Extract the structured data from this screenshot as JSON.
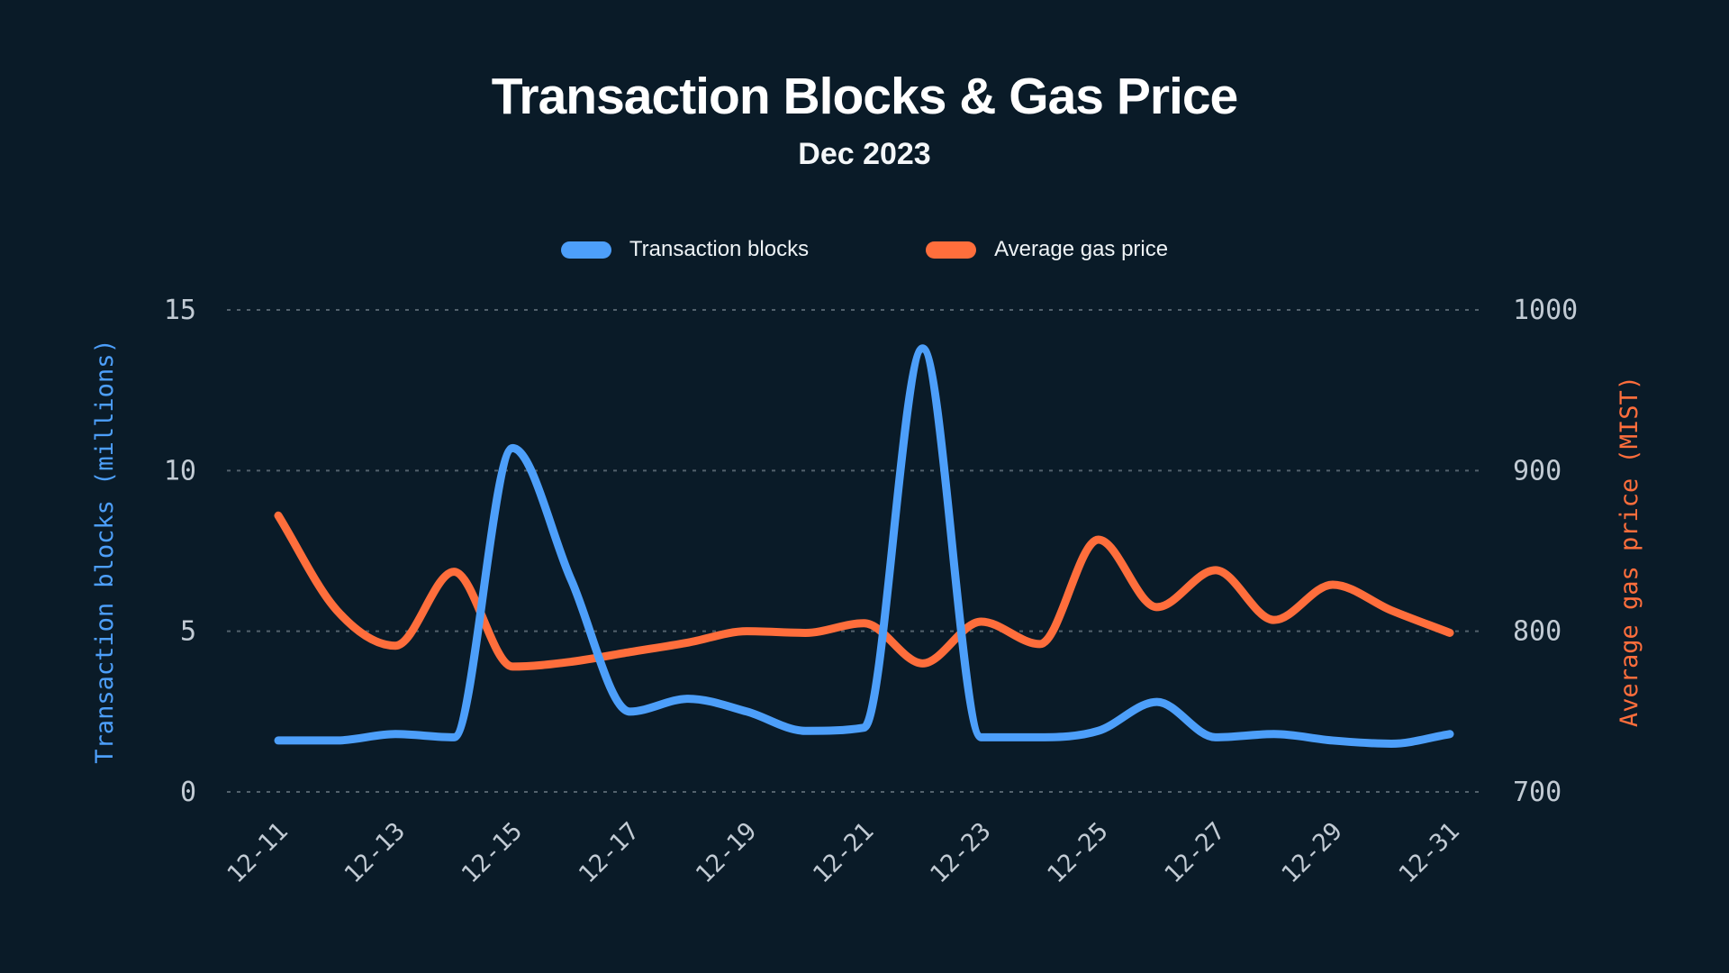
{
  "title": "Transaction Blocks & Gas Price",
  "subtitle": "Dec 2023",
  "legend": [
    {
      "label": "Transaction blocks",
      "color": "#4D9FFA"
    },
    {
      "label": "Average gas price",
      "color": "#FF6E3C"
    }
  ],
  "colors": {
    "background": "#0A1B28",
    "blue": "#4D9FFA",
    "orange": "#FF6E3C",
    "tick_text": "#C2CBD4",
    "gridline": "#53626D"
  },
  "chart_data": {
    "type": "line",
    "x": [
      "12-11",
      "12-12",
      "12-13",
      "12-14",
      "12-15",
      "12-16",
      "12-17",
      "12-18",
      "12-19",
      "12-20",
      "12-21",
      "12-22",
      "12-23",
      "12-24",
      "12-25",
      "12-26",
      "12-27",
      "12-28",
      "12-29",
      "12-30",
      "12-31"
    ],
    "x_tick_labels": [
      "12-11",
      "12-13",
      "12-15",
      "12-17",
      "12-19",
      "12-21",
      "12-23",
      "12-25",
      "12-27",
      "12-29",
      "12-31"
    ],
    "series": [
      {
        "name": "Transaction blocks",
        "axis": "left",
        "color": "#4D9FFA",
        "values": [
          1.6,
          1.6,
          1.8,
          1.7,
          10.7,
          6.6,
          2.5,
          2.9,
          2.5,
          1.9,
          2.0,
          13.8,
          1.7,
          1.7,
          1.9,
          2.8,
          1.7,
          1.8,
          1.6,
          1.5,
          1.8
        ]
      },
      {
        "name": "Average gas price",
        "axis": "right",
        "color": "#FF6E3C",
        "values": [
          872,
          813,
          791,
          837,
          778,
          781,
          787,
          793,
          800,
          799,
          805,
          780,
          806,
          792,
          857,
          815,
          838,
          807,
          829,
          813,
          799
        ]
      }
    ],
    "left_axis": {
      "label": "Transaction blocks (millions)",
      "ticks": [
        0,
        5,
        10,
        15
      ],
      "range": [
        0,
        15
      ]
    },
    "right_axis": {
      "label": "Average gas price (MIST)",
      "ticks": [
        700,
        800,
        900,
        1000
      ],
      "range": [
        700,
        1000
      ]
    },
    "grid": true,
    "grid_style": "dashed",
    "legend_position": "top"
  }
}
